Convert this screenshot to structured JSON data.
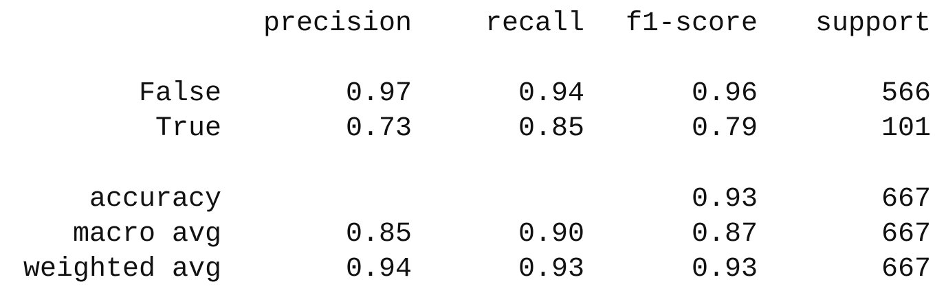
{
  "report": {
    "headers": [
      "precision",
      "recall",
      "f1-score",
      "support"
    ],
    "rows": [
      {
        "label": "False",
        "values": [
          "0.97",
          "0.94",
          "0.96",
          "566"
        ]
      },
      {
        "label": "True",
        "values": [
          "0.73",
          "0.85",
          "0.79",
          "101"
        ]
      },
      {
        "label": "accuracy",
        "values": [
          "",
          "",
          "0.93",
          "667"
        ]
      },
      {
        "label": "macro avg",
        "values": [
          "0.85",
          "0.90",
          "0.87",
          "667"
        ]
      },
      {
        "label": "weighted avg",
        "values": [
          "0.94",
          "0.93",
          "0.93",
          "667"
        ]
      }
    ]
  }
}
